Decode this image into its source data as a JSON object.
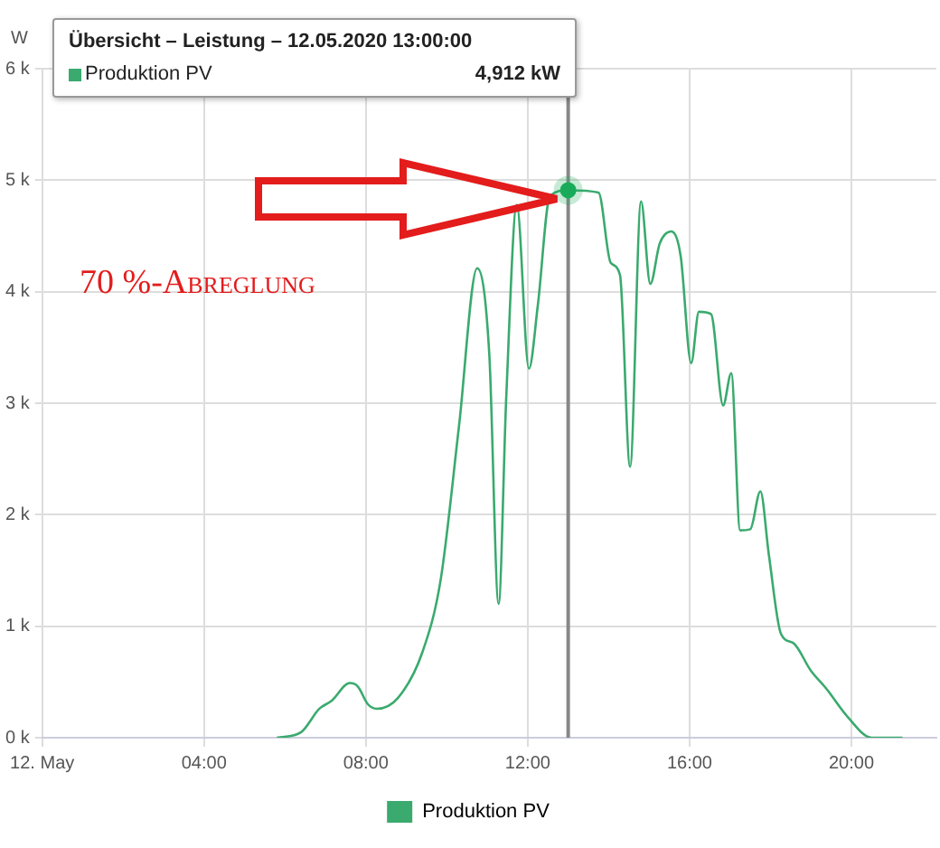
{
  "chart_data": {
    "type": "line",
    "ylabel": "W",
    "x": [
      5.8,
      6.4,
      6.85,
      7.15,
      7.6,
      7.8,
      8.05,
      8.27,
      8.8,
      9.4,
      9.85,
      10.3,
      10.75,
      11.05,
      11.28,
      11.47,
      11.73,
      12.03,
      12.25,
      12.55,
      13.0,
      13.75,
      14.05,
      14.28,
      14.53,
      14.8,
      15.03,
      15.26,
      15.55,
      15.78,
      16.04,
      16.23,
      16.53,
      16.83,
      17.03,
      17.25,
      17.5,
      17.75,
      17.96,
      18.26,
      18.56,
      19.0,
      19.38,
      19.9,
      20.5,
      21.26
    ],
    "series": [
      {
        "name": "Produktion PV",
        "color": "#3aaa6e",
        "values": [
          0,
          50,
          260,
          330,
          490,
          460,
          300,
          260,
          360,
          770,
          1420,
          2790,
          4210,
          3440,
          1200,
          3060,
          4780,
          3310,
          3880,
          4860,
          4910,
          4890,
          4260,
          4150,
          2430,
          4810,
          4070,
          4430,
          4540,
          4320,
          3360,
          3820,
          3800,
          2980,
          3270,
          1860,
          1870,
          2210,
          1640,
          930,
          850,
          600,
          440,
          190,
          0,
          0
        ]
      }
    ],
    "xlim": [
      0,
      22.1
    ],
    "xticks": [
      {
        "value": 0,
        "label": "12. May"
      },
      {
        "value": 4,
        "label": "04:00"
      },
      {
        "value": 8,
        "label": "08:00"
      },
      {
        "value": 12,
        "label": "12:00"
      },
      {
        "value": 16,
        "label": "16:00"
      },
      {
        "value": 20,
        "label": "20:00"
      }
    ],
    "ylim": [
      0,
      6000
    ],
    "yticks": [
      {
        "value": 0,
        "label": "0 k"
      },
      {
        "value": 1000,
        "label": "1 k"
      },
      {
        "value": 2000,
        "label": "2 k"
      },
      {
        "value": 3000,
        "label": "3 k"
      },
      {
        "value": 4000,
        "label": "4 k"
      },
      {
        "value": 5000,
        "label": "5 k"
      },
      {
        "value": 6000,
        "label": "6 k"
      }
    ],
    "grid": true,
    "legend": "bottom",
    "ref_lines": [
      {
        "axis": "x",
        "value": 13,
        "color": "#888888"
      }
    ],
    "annotations": [
      "Übersicht – Leistung – 12.05.2020 13:00:00",
      "4,912 kW",
      "70 %-Abreglung"
    ]
  }
}
